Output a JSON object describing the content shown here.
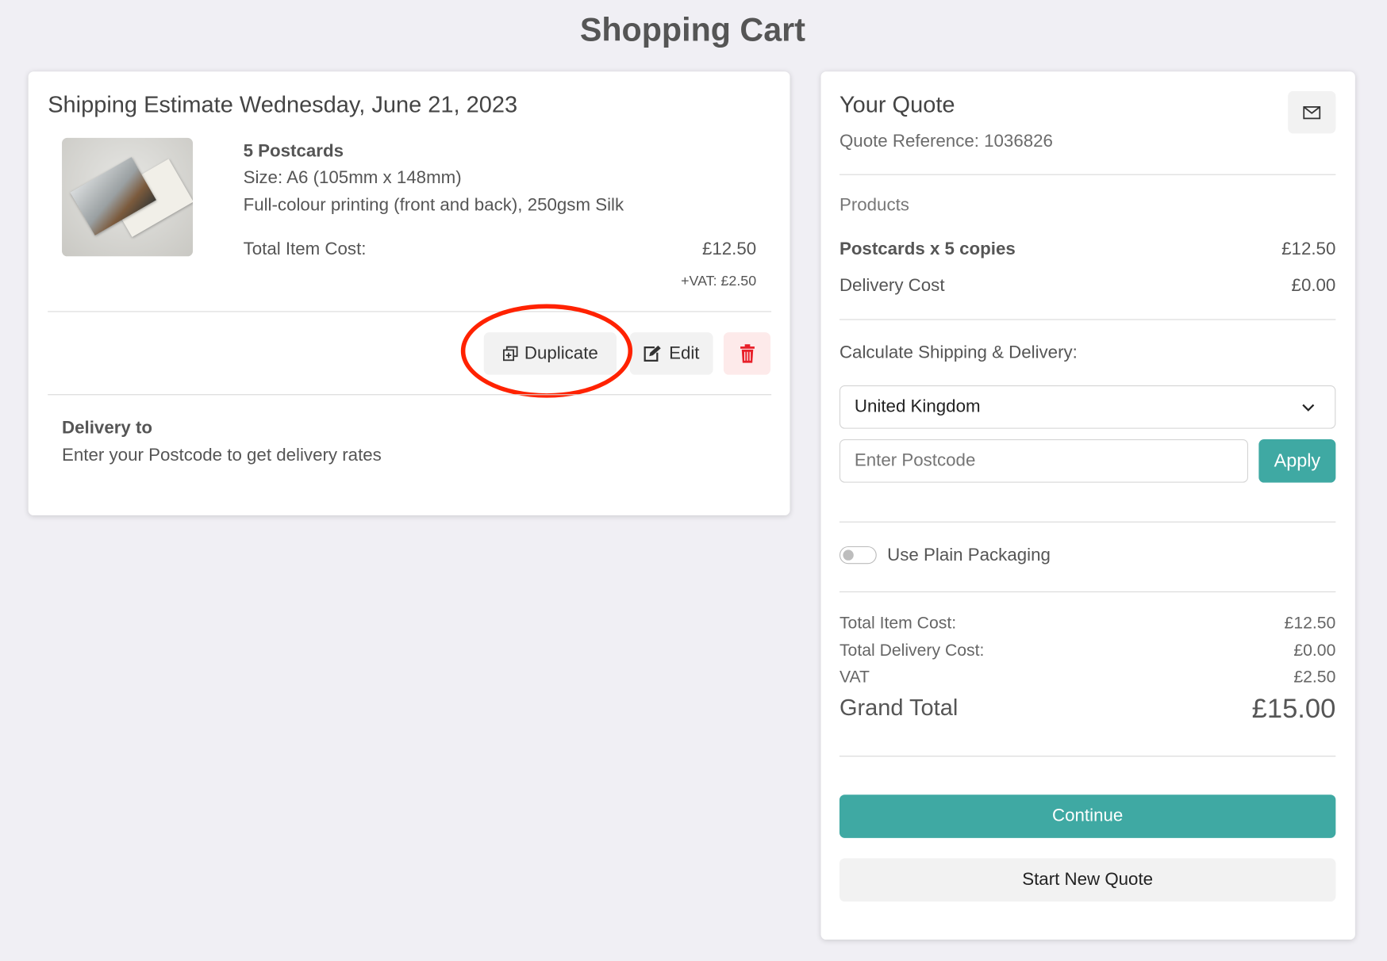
{
  "page": {
    "title": "Shopping Cart"
  },
  "cart": {
    "heading": "Shipping Estimate Wednesday, June 21, 2023",
    "item": {
      "thumbnail_icon": "postcard-image",
      "name": "5 Postcards",
      "size": "Size: A6 (105mm x 148mm)",
      "spec": "Full-colour printing (front and back), 250gsm Silk",
      "total_label": "Total Item Cost:",
      "total_value": "£12.50",
      "vat": "+VAT: £2.50"
    },
    "actions": {
      "duplicate": "Duplicate",
      "edit": "Edit",
      "delete_icon": "trash-icon"
    },
    "delivery": {
      "title": "Delivery to",
      "text": "Enter your Postcode to get delivery rates"
    }
  },
  "quote": {
    "title": "Your Quote",
    "reference": "Quote Reference: 1036826",
    "email_icon": "envelope-icon",
    "products_label": "Products",
    "product_line": {
      "label": "Postcards x 5 copies",
      "value": "£12.50"
    },
    "delivery_line": {
      "label": "Delivery Cost",
      "value": "£0.00"
    },
    "shipping_label": "Calculate Shipping & Delivery:",
    "country": "United Kingdom",
    "postcode_placeholder": "Enter Postcode",
    "postcode_value": "",
    "apply": "Apply",
    "plain_packaging": {
      "label": "Use Plain Packaging",
      "on": false
    },
    "totals": [
      {
        "label": "Total Item Cost:",
        "value": "£12.50"
      },
      {
        "label": "Total Delivery Cost:",
        "value": "£0.00"
      },
      {
        "label": "VAT",
        "value": "£2.50"
      }
    ],
    "grand_total": {
      "label": "Grand Total",
      "value": "£15.00"
    },
    "continue": "Continue",
    "start_new": "Start New Quote"
  },
  "colors": {
    "accent": "#3fa9a3",
    "danger": "#e8202a",
    "highlight": "#ff2200"
  }
}
